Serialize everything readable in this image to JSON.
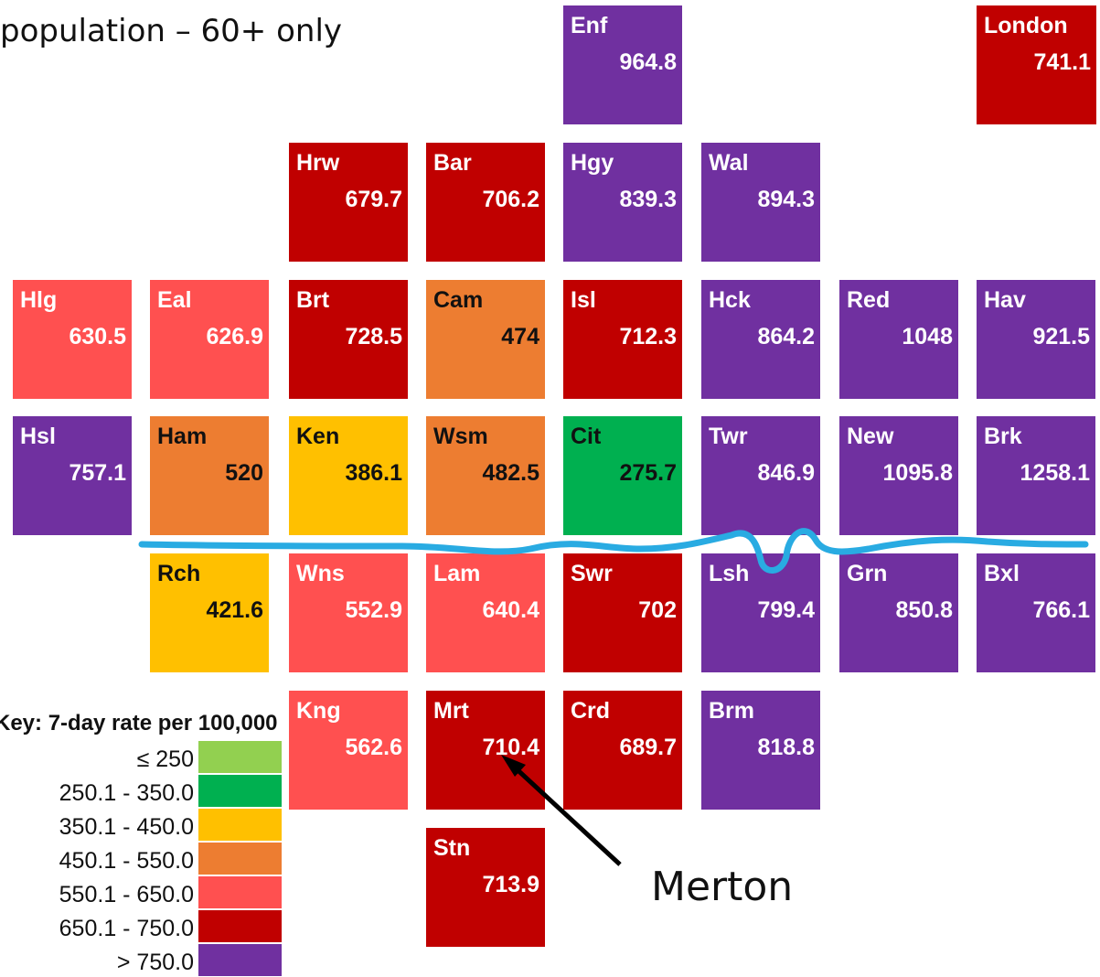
{
  "heading": "population – 60+ only",
  "annotation": "Merton",
  "key": {
    "title": "Key: 7-day rate per 100,000",
    "bands": [
      {
        "label": "≤ 250",
        "color": "#92d050"
      },
      {
        "label": "250.1 - 350.0",
        "color": "#00b050"
      },
      {
        "label": "350.1 - 450.0",
        "color": "#ffc000"
      },
      {
        "label": "450.1 - 550.0",
        "color": "#ed7d31"
      },
      {
        "label": "550.1 - 650.0",
        "color": "#ff5050"
      },
      {
        "label": "650.1 - 750.0",
        "color": "#c00000"
      },
      {
        "label": "> 750.0",
        "color": "#7030a0"
      }
    ]
  },
  "tiles": [
    {
      "id": "enf",
      "abbr": "Enf",
      "value": "964.8",
      "color": "#7030a0"
    },
    {
      "id": "london",
      "abbr": "London",
      "value": "741.1",
      "color": "#c00000"
    },
    {
      "id": "hrw",
      "abbr": "Hrw",
      "value": "679.7",
      "color": "#c00000"
    },
    {
      "id": "bar",
      "abbr": "Bar",
      "value": "706.2",
      "color": "#c00000"
    },
    {
      "id": "hgy",
      "abbr": "Hgy",
      "value": "839.3",
      "color": "#7030a0"
    },
    {
      "id": "wal",
      "abbr": "Wal",
      "value": "894.3",
      "color": "#7030a0"
    },
    {
      "id": "hlg",
      "abbr": "Hlg",
      "value": "630.5",
      "color": "#ff5050"
    },
    {
      "id": "eal",
      "abbr": "Eal",
      "value": "626.9",
      "color": "#ff5050"
    },
    {
      "id": "brt",
      "abbr": "Brt",
      "value": "728.5",
      "color": "#c00000"
    },
    {
      "id": "cam",
      "abbr": "Cam",
      "value": "474",
      "color": "#ed7d31"
    },
    {
      "id": "isl",
      "abbr": "Isl",
      "value": "712.3",
      "color": "#c00000"
    },
    {
      "id": "hck",
      "abbr": "Hck",
      "value": "864.2",
      "color": "#7030a0"
    },
    {
      "id": "red",
      "abbr": "Red",
      "value": "1048",
      "color": "#7030a0"
    },
    {
      "id": "hav",
      "abbr": "Hav",
      "value": "921.5",
      "color": "#7030a0"
    },
    {
      "id": "hsl",
      "abbr": "Hsl",
      "value": "757.1",
      "color": "#7030a0"
    },
    {
      "id": "ham",
      "abbr": "Ham",
      "value": "520",
      "color": "#ed7d31"
    },
    {
      "id": "ken",
      "abbr": "Ken",
      "value": "386.1",
      "color": "#ffc000"
    },
    {
      "id": "wsm",
      "abbr": "Wsm",
      "value": "482.5",
      "color": "#ed7d31"
    },
    {
      "id": "cit",
      "abbr": "Cit",
      "value": "275.7",
      "color": "#00b050"
    },
    {
      "id": "twr",
      "abbr": "Twr",
      "value": "846.9",
      "color": "#7030a0"
    },
    {
      "id": "new",
      "abbr": "New",
      "value": "1095.8",
      "color": "#7030a0"
    },
    {
      "id": "brk",
      "abbr": "Brk",
      "value": "1258.1",
      "color": "#7030a0"
    },
    {
      "id": "rch",
      "abbr": "Rch",
      "value": "421.6",
      "color": "#ffc000"
    },
    {
      "id": "wns",
      "abbr": "Wns",
      "value": "552.9",
      "color": "#ff5050"
    },
    {
      "id": "lam",
      "abbr": "Lam",
      "value": "640.4",
      "color": "#ff5050"
    },
    {
      "id": "swr",
      "abbr": "Swr",
      "value": "702",
      "color": "#c00000"
    },
    {
      "id": "lsh",
      "abbr": "Lsh",
      "value": "799.4",
      "color": "#7030a0"
    },
    {
      "id": "grn",
      "abbr": "Grn",
      "value": "850.8",
      "color": "#7030a0"
    },
    {
      "id": "bxl",
      "abbr": "Bxl",
      "value": "766.1",
      "color": "#7030a0"
    },
    {
      "id": "kng",
      "abbr": "Kng",
      "value": "562.6",
      "color": "#ff5050"
    },
    {
      "id": "mrt",
      "abbr": "Mrt",
      "value": "710.4",
      "color": "#c00000"
    },
    {
      "id": "crd",
      "abbr": "Crd",
      "value": "689.7",
      "color": "#c00000"
    },
    {
      "id": "brm",
      "abbr": "Brm",
      "value": "818.8",
      "color": "#7030a0"
    },
    {
      "id": "stn",
      "abbr": "Stn",
      "value": "713.9",
      "color": "#c00000"
    }
  ],
  "river_color": "#29abe2"
}
